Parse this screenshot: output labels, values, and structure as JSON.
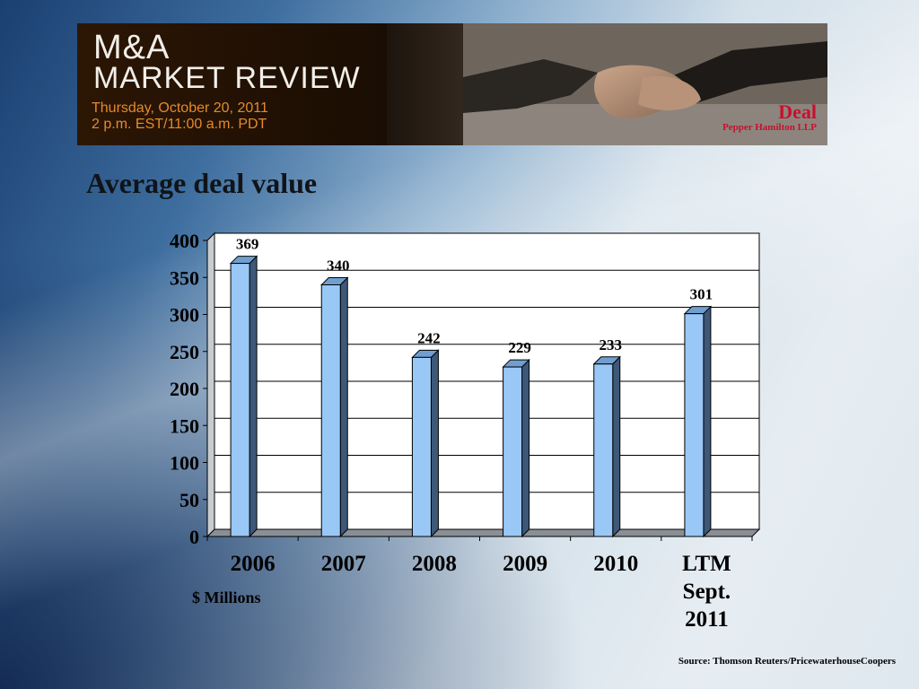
{
  "banner": {
    "title_line1": "M&A",
    "title_line2": "MARKET REVIEW",
    "date_line1": "Thursday, October 20, 2011",
    "date_line2": "2 p.m. EST/11:00 a.m.  PDT",
    "logo_deal": "Deal",
    "logo_pepper": "Pepper Hamilton LLP"
  },
  "slide_title": "Average deal value",
  "units_label": "$ Millions",
  "source": "Source: Thomson Reuters/PricewaterhouseCoopers",
  "chart_data": {
    "type": "bar",
    "categories": [
      "2006",
      "2007",
      "2008",
      "2009",
      "2010",
      [
        "LTM",
        "Sept.",
        "2011"
      ]
    ],
    "values": [
      369,
      340,
      242,
      229,
      233,
      301
    ],
    "data_labels": [
      "369",
      "340",
      "242",
      "229",
      "233",
      "301"
    ],
    "title": "Average deal value",
    "ylabel": "$ Millions",
    "ylim": [
      0,
      400
    ],
    "yticks": [
      0,
      50,
      100,
      150,
      200,
      250,
      300,
      350,
      400
    ],
    "grid": true,
    "bar_color": "#99c8f7",
    "bar_side_color": "#3d5878"
  }
}
